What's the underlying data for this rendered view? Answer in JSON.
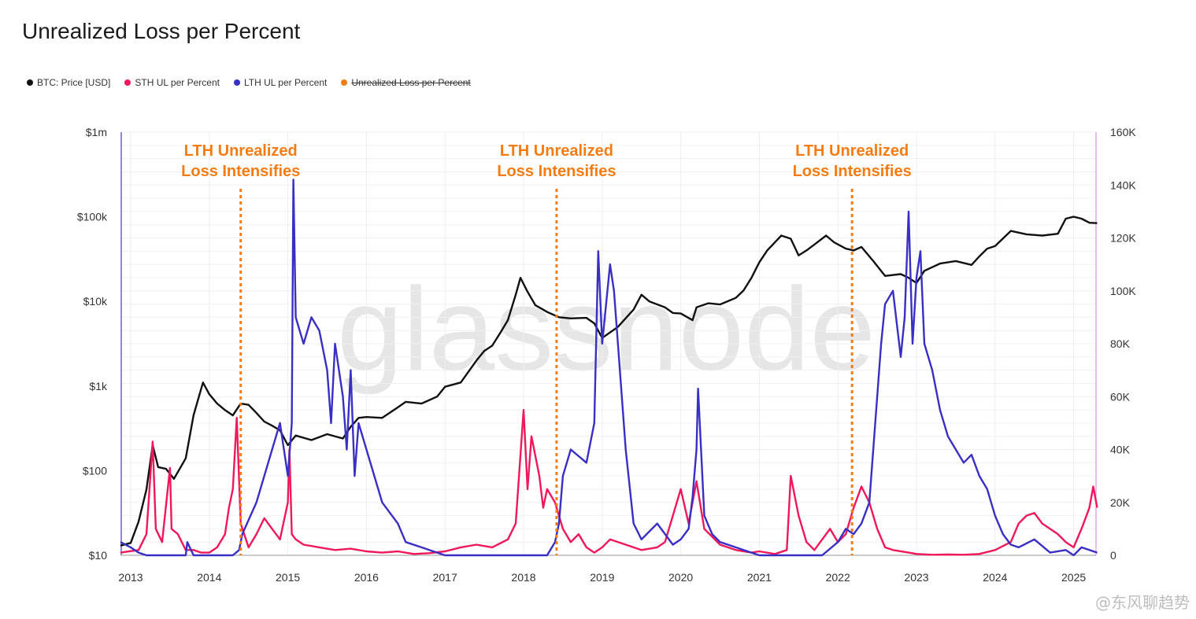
{
  "title": "Unrealized Loss per Percent",
  "legend": [
    {
      "label": "BTC: Price [USD]",
      "color": "#111111",
      "struck": false
    },
    {
      "label": "STH UL per Percent",
      "color": "#f0185a",
      "struck": false
    },
    {
      "label": "LTH UL per Percent",
      "color": "#3a2fc4",
      "struck": false
    },
    {
      "label": "Unrealized Loss per Percent",
      "color": "#f57c12",
      "struck": true
    }
  ],
  "watermark": "@东风聊趋势",
  "brand_watermark": "glassnode",
  "chart_data": {
    "type": "line",
    "title": "Unrealized Loss per Percent",
    "x_ticks": [
      "2013",
      "2014",
      "2015",
      "2016",
      "2017",
      "2018",
      "2019",
      "2020",
      "2021",
      "2022",
      "2023",
      "2024",
      "2025"
    ],
    "y_left_ticks": [
      "$1m",
      "$100k",
      "$10k",
      "$1k",
      "$100",
      "$10"
    ],
    "y_left_scale": "log",
    "y_left_range": [
      10,
      1000000
    ],
    "y_right_ticks": [
      "160K",
      "140K",
      "120K",
      "100K",
      "80K",
      "60K",
      "40K",
      "20K",
      "0"
    ],
    "y_right_range": [
      0,
      160000
    ],
    "x_range": [
      2012.87,
      2025.3
    ],
    "grid": true,
    "annotations": [
      {
        "text_line1": "LTH Unrealized",
        "text_line2": "Loss Intensifies",
        "x": 2014.4
      },
      {
        "text_line1": "LTH Unrealized",
        "text_line2": "Loss Intensifies",
        "x": 2018.42
      },
      {
        "text_line1": "LTH Unrealized",
        "text_line2": "Loss Intensifies",
        "x": 2022.18
      }
    ],
    "series": [
      {
        "name": "BTC: Price [USD]",
        "axis": "left",
        "color": "#111111",
        "x": [
          2012.87,
          2013.0,
          2013.1,
          2013.2,
          2013.28,
          2013.35,
          2013.45,
          2013.55,
          2013.7,
          2013.8,
          2013.92,
          2014.0,
          2014.1,
          2014.2,
          2014.3,
          2014.4,
          2014.5,
          2014.6,
          2014.7,
          2014.8,
          2014.9,
          2015.0,
          2015.1,
          2015.3,
          2015.5,
          2015.7,
          2015.8,
          2015.9,
          2016.0,
          2016.2,
          2016.4,
          2016.5,
          2016.7,
          2016.9,
          2017.0,
          2017.2,
          2017.4,
          2017.5,
          2017.6,
          2017.7,
          2017.8,
          2017.9,
          2017.96,
          2018.05,
          2018.15,
          2018.3,
          2018.45,
          2018.6,
          2018.8,
          2018.9,
          2019.0,
          2019.2,
          2019.4,
          2019.5,
          2019.6,
          2019.8,
          2019.9,
          2020.0,
          2020.15,
          2020.2,
          2020.35,
          2020.5,
          2020.7,
          2020.8,
          2020.9,
          2021.0,
          2021.1,
          2021.28,
          2021.4,
          2021.5,
          2021.6,
          2021.7,
          2021.85,
          2021.95,
          2022.1,
          2022.2,
          2022.3,
          2022.45,
          2022.6,
          2022.8,
          2022.9,
          2023.0,
          2023.1,
          2023.3,
          2023.5,
          2023.7,
          2023.8,
          2023.9,
          2024.0,
          2024.2,
          2024.4,
          2024.6,
          2024.8,
          2024.9,
          2025.0,
          2025.1,
          2025.2,
          2025.3
        ],
        "y": [
          13,
          14,
          25,
          60,
          200,
          110,
          105,
          80,
          140,
          450,
          1100,
          800,
          620,
          520,
          450,
          620,
          600,
          480,
          380,
          340,
          300,
          200,
          260,
          230,
          270,
          240,
          330,
          420,
          430,
          420,
          560,
          650,
          620,
          750,
          980,
          1100,
          2000,
          2600,
          3000,
          4200,
          6000,
          12000,
          19000,
          13000,
          9000,
          7500,
          6500,
          6300,
          6400,
          5500,
          3700,
          5000,
          8000,
          12000,
          10000,
          8500,
          7300,
          7200,
          6000,
          8500,
          9500,
          9200,
          11000,
          13500,
          19000,
          29000,
          40000,
          60000,
          55000,
          35000,
          40000,
          47000,
          60000,
          50000,
          42000,
          40000,
          44000,
          30000,
          20000,
          21000,
          19000,
          16500,
          23000,
          28000,
          30000,
          27000,
          34000,
          42000,
          45000,
          68000,
          62000,
          60000,
          63000,
          95000,
          100000,
          95000,
          85000,
          84000
        ]
      },
      {
        "name": "STH UL per Percent",
        "axis": "right",
        "color": "#f0185a",
        "x": [
          2012.87,
          2013.1,
          2013.2,
          2013.28,
          2013.32,
          2013.4,
          2013.5,
          2013.52,
          2013.6,
          2013.7,
          2013.8,
          2013.9,
          2014.0,
          2014.1,
          2014.2,
          2014.25,
          2014.3,
          2014.35,
          2014.4,
          2014.5,
          2014.6,
          2014.7,
          2014.8,
          2014.9,
          2015.0,
          2015.02,
          2015.05,
          2015.1,
          2015.2,
          2015.4,
          2015.6,
          2015.8,
          2016.0,
          2016.2,
          2016.4,
          2016.6,
          2016.8,
          2017.0,
          2017.2,
          2017.4,
          2017.6,
          2017.8,
          2017.9,
          2018.0,
          2018.05,
          2018.1,
          2018.2,
          2018.25,
          2018.3,
          2018.4,
          2018.5,
          2018.6,
          2018.7,
          2018.8,
          2018.9,
          2019.0,
          2019.1,
          2019.3,
          2019.5,
          2019.7,
          2019.8,
          2019.9,
          2020.0,
          2020.1,
          2020.2,
          2020.3,
          2020.5,
          2020.7,
          2020.9,
          2021.0,
          2021.2,
          2021.35,
          2021.4,
          2021.5,
          2021.6,
          2021.7,
          2021.9,
          2022.0,
          2022.1,
          2022.2,
          2022.3,
          2022.4,
          2022.5,
          2022.6,
          2022.7,
          2022.9,
          2023.0,
          2023.2,
          2023.4,
          2023.6,
          2023.8,
          2024.0,
          2024.2,
          2024.3,
          2024.4,
          2024.5,
          2024.6,
          2024.7,
          2024.8,
          2024.9,
          2025.0,
          2025.1,
          2025.2,
          2025.25,
          2025.3
        ],
        "y": [
          1000,
          2000,
          8000,
          43000,
          10000,
          5000,
          33000,
          10000,
          8000,
          2000,
          2000,
          1000,
          1000,
          3000,
          8000,
          18000,
          25000,
          52000,
          12000,
          3000,
          8000,
          14000,
          10000,
          6000,
          20000,
          40000,
          8000,
          6000,
          4000,
          3000,
          2000,
          2500,
          1500,
          1000,
          1500,
          500,
          800,
          1500,
          3000,
          4000,
          3000,
          6000,
          12000,
          55000,
          25000,
          45000,
          30000,
          18000,
          25000,
          20000,
          10000,
          5000,
          8000,
          3000,
          1000,
          3000,
          6000,
          4000,
          2000,
          3000,
          5000,
          15000,
          25000,
          12000,
          28000,
          10000,
          4000,
          2000,
          1000,
          1500,
          500,
          2000,
          30000,
          15000,
          5000,
          2000,
          10000,
          5000,
          8000,
          18000,
          26000,
          20000,
          10000,
          3000,
          2000,
          1000,
          500,
          200,
          300,
          200,
          500,
          2000,
          5000,
          12000,
          15000,
          16000,
          12000,
          10000,
          8000,
          5000,
          3000,
          10000,
          18000,
          26000,
          18000
        ]
      },
      {
        "name": "LTH UL per Percent",
        "axis": "right",
        "color": "#3a2fc4",
        "x": [
          2012.87,
          2013.0,
          2013.1,
          2013.2,
          2013.3,
          2013.7,
          2013.72,
          2013.8,
          2014.3,
          2014.38,
          2014.42,
          2014.6,
          2014.8,
          2014.9,
          2015.0,
          2015.05,
          2015.07,
          2015.1,
          2015.2,
          2015.3,
          2015.4,
          2015.5,
          2015.55,
          2015.6,
          2015.7,
          2015.75,
          2015.8,
          2015.85,
          2015.9,
          2016.0,
          2016.1,
          2016.2,
          2016.4,
          2016.5,
          2016.7,
          2016.9,
          2017.0,
          2017.5,
          2018.0,
          2018.3,
          2018.4,
          2018.45,
          2018.5,
          2018.6,
          2018.8,
          2018.9,
          2018.95,
          2019.0,
          2019.1,
          2019.15,
          2019.2,
          2019.3,
          2019.4,
          2019.5,
          2019.7,
          2019.9,
          2020.0,
          2020.1,
          2020.15,
          2020.2,
          2020.22,
          2020.3,
          2020.4,
          2020.5,
          2020.7,
          2020.8,
          2020.9,
          2021.0,
          2021.4,
          2021.6,
          2021.8,
          2022.0,
          2022.1,
          2022.2,
          2022.3,
          2022.4,
          2022.45,
          2022.5,
          2022.55,
          2022.6,
          2022.7,
          2022.8,
          2022.85,
          2022.9,
          2022.95,
          2023.0,
          2023.05,
          2023.1,
          2023.2,
          2023.3,
          2023.4,
          2023.5,
          2023.6,
          2023.7,
          2023.8,
          2023.9,
          2024.0,
          2024.1,
          2024.2,
          2024.3,
          2024.5,
          2024.7,
          2024.9,
          2025.0,
          2025.1,
          2025.2,
          2025.3
        ],
        "y": [
          5000,
          3000,
          1000,
          0,
          0,
          0,
          5000,
          0,
          0,
          2000,
          8000,
          20000,
          40000,
          50000,
          30000,
          50000,
          142000,
          90000,
          80000,
          90000,
          85000,
          70000,
          50000,
          80000,
          60000,
          40000,
          70000,
          30000,
          50000,
          40000,
          30000,
          20000,
          12000,
          5000,
          3000,
          1000,
          0,
          0,
          0,
          0,
          5000,
          12000,
          30000,
          40000,
          35000,
          50000,
          115000,
          80000,
          110000,
          100000,
          80000,
          40000,
          12000,
          6000,
          12000,
          4000,
          6000,
          10000,
          22000,
          40000,
          63000,
          15000,
          8000,
          5000,
          3000,
          2000,
          1000,
          0,
          0,
          0,
          0,
          5000,
          10000,
          8000,
          12000,
          20000,
          40000,
          60000,
          80000,
          95000,
          100000,
          75000,
          90000,
          130000,
          80000,
          105000,
          115000,
          80000,
          70000,
          55000,
          45000,
          40000,
          35000,
          38000,
          30000,
          25000,
          15000,
          8000,
          4000,
          3000,
          6000,
          1000,
          2000,
          0,
          3000,
          2000,
          1000
        ]
      }
    ]
  }
}
